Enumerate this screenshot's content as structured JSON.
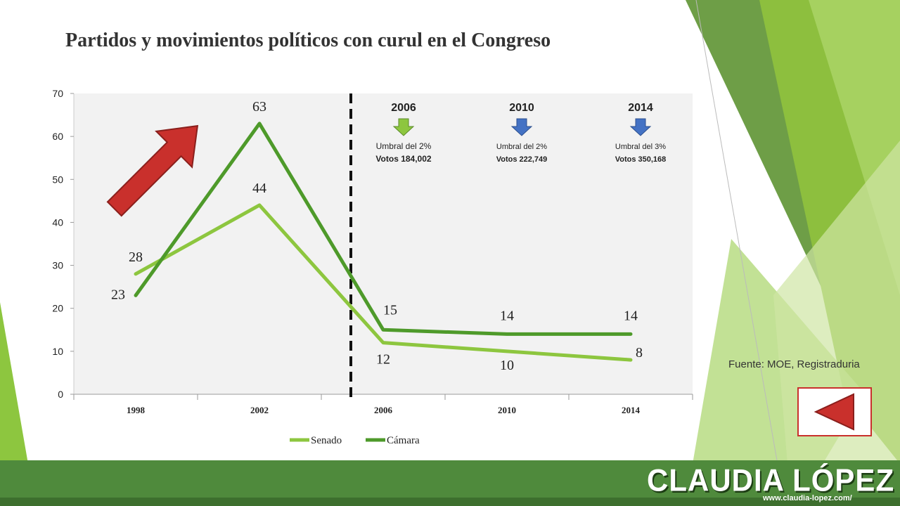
{
  "slide": {
    "title": "Partidos y movimientos políticos con curul en el Congreso",
    "source": "Fuente: MOE, Registraduria",
    "brand_name": "CLAUDIA LÓPEZ",
    "brand_url": "www.claudia-lopez.com/"
  },
  "colors": {
    "senado": "#8dc63f",
    "camara": "#4e9a2a",
    "arrow_red": "#c9302c",
    "arrow_green": "#8dc63f",
    "arrow_blue": "#4472c4",
    "plot_bg": "#f2f2f2",
    "footer": "#4f8a3c"
  },
  "thresholds": [
    {
      "year": "2006",
      "line1": "Umbral del 2%",
      "line2": "Votos 184,002",
      "arrow": "green-down-arrow"
    },
    {
      "year": "2010",
      "line1": "Umbral del 2%",
      "line2": "Votos  222,749",
      "arrow": "blue-down-arrow"
    },
    {
      "year": "2014",
      "line1": "Umbral del 3%",
      "line2": "Votos  350,168",
      "arrow": "blue-down-arrow"
    }
  ],
  "chart_data": {
    "type": "line",
    "categories": [
      "1998",
      "2002",
      "2006",
      "2010",
      "2014"
    ],
    "series": [
      {
        "name": "Senado",
        "values": [
          28,
          44,
          12,
          10,
          8
        ]
      },
      {
        "name": "Cámara",
        "values": [
          23,
          63,
          15,
          14,
          14
        ]
      }
    ],
    "yticks": [
      "0",
      "10",
      "20",
      "30",
      "40",
      "50",
      "60",
      "70"
    ],
    "ylim": [
      0,
      70
    ],
    "legend": "bottom",
    "grid": false,
    "divider": "dashed line between 2002 and 2006",
    "annotation": "red up-right arrow"
  }
}
